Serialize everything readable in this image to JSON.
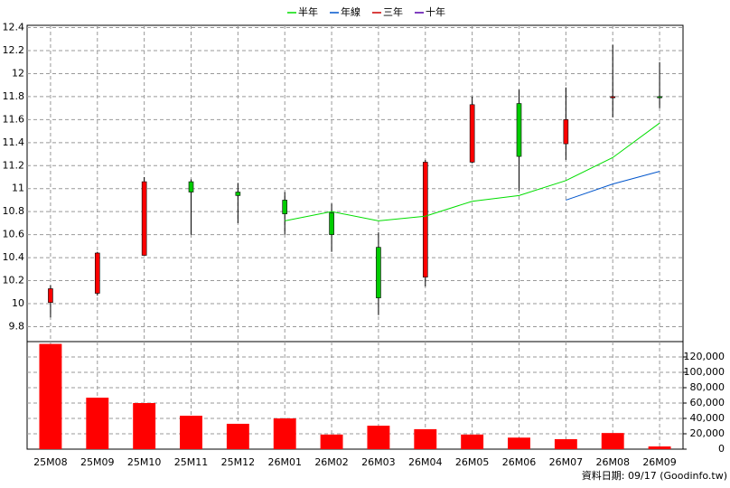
{
  "chart_data": {
    "type": "candlestick",
    "categories": [
      "25M08",
      "25M09",
      "25M10",
      "25M11",
      "25M12",
      "26M01",
      "26M02",
      "26M03",
      "26M04",
      "26M05",
      "26M06",
      "26M07",
      "26M08",
      "26M09"
    ],
    "open": [
      10.01,
      10.09,
      10.42,
      11.06,
      10.97,
      10.9,
      10.79,
      10.49,
      10.23,
      11.23,
      11.74,
      11.39,
      11.79,
      11.8
    ],
    "high": [
      10.16,
      10.45,
      11.1,
      11.08,
      11.05,
      10.97,
      10.87,
      10.62,
      11.25,
      11.8,
      11.86,
      11.88,
      12.25,
      12.1
    ],
    "low": [
      9.88,
      10.07,
      10.42,
      10.6,
      10.7,
      10.6,
      10.45,
      9.9,
      10.15,
      11.22,
      10.98,
      11.25,
      11.62,
      11.7
    ],
    "close": [
      10.13,
      10.44,
      11.06,
      10.97,
      10.94,
      10.78,
      10.6,
      10.05,
      11.23,
      11.73,
      11.28,
      11.6,
      11.8,
      11.79
    ],
    "up_color": "#ff0000",
    "down_color": "#00cc00",
    "series": [
      {
        "name": "半年",
        "color": "#00dd00",
        "values": [
          null,
          null,
          null,
          null,
          null,
          10.72,
          10.8,
          10.72,
          10.76,
          10.89,
          10.94,
          11.07,
          11.27,
          11.57
        ]
      },
      {
        "name": "年線",
        "color": "#0055cc",
        "values": [
          null,
          null,
          null,
          null,
          null,
          null,
          null,
          null,
          null,
          null,
          null,
          10.9,
          11.04,
          11.15
        ]
      },
      {
        "name": "三年",
        "color": "#cc0000",
        "values": [
          null,
          null,
          null,
          null,
          null,
          null,
          null,
          null,
          null,
          null,
          null,
          null,
          null,
          null
        ]
      },
      {
        "name": "十年",
        "color": "#5500aa",
        "values": [
          null,
          null,
          null,
          null,
          null,
          null,
          null,
          null,
          null,
          null,
          null,
          null,
          null,
          null
        ]
      }
    ],
    "ylim": [
      9.67,
      12.42
    ],
    "yticks": [
      9.8,
      10,
      10.2,
      10.4,
      10.6,
      10.8,
      11,
      11.2,
      11.4,
      11.6,
      11.8,
      12,
      12.2,
      12.4
    ],
    "grid": true,
    "volume": {
      "color": "#ff0000",
      "values": [
        137000,
        67000,
        60000,
        43500,
        33000,
        40000,
        19000,
        30500,
        26000,
        19000,
        15000,
        13000,
        21000,
        3500
      ],
      "ylim": [
        0,
        140000
      ],
      "yticks": [
        0,
        {
          "value": 20000,
          "label": "20,000"
        },
        {
          "value": 40000,
          "label": "40,000"
        },
        {
          "value": 60000,
          "label": "60,000"
        },
        {
          "value": 80000,
          "label": "80,000"
        },
        {
          "value": 100000,
          "label": "100,000"
        },
        {
          "value": 120000,
          "label": "120,000"
        }
      ]
    },
    "note": "資料日期: 09/17  (Goodinfo.tw)"
  }
}
